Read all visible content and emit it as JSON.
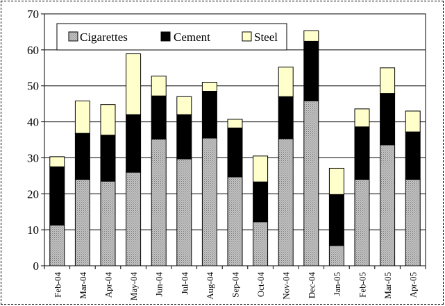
{
  "chart_data": {
    "type": "bar",
    "stacked": true,
    "categories": [
      "Feb-04",
      "Mar-04",
      "Apr-04",
      "May-04",
      "Jun-04",
      "Jul-04",
      "Aug-04",
      "Sep-04",
      "Oct-04",
      "Nov-04",
      "Dec-04",
      "Jan-05",
      "Feb-05",
      "Mar-05",
      "Apr-05"
    ],
    "series": [
      {
        "name": "Cigarettes",
        "color": "#b3b3b3",
        "pattern": "dotted-gray",
        "values": [
          11.3,
          24.0,
          23.5,
          26.0,
          35.2,
          29.7,
          35.5,
          24.7,
          12.2,
          35.3,
          45.8,
          5.6,
          24.0,
          33.6,
          24.0
        ]
      },
      {
        "name": "Cement",
        "color": "#000000",
        "values": [
          16.2,
          12.8,
          12.8,
          16.0,
          12.0,
          12.3,
          13.0,
          13.6,
          11.1,
          11.7,
          16.6,
          14.2,
          14.6,
          14.3,
          13.2
        ]
      },
      {
        "name": "Steel",
        "color": "#ffffcc",
        "values": [
          2.8,
          9.0,
          8.5,
          16.9,
          5.5,
          5.0,
          2.5,
          2.4,
          7.2,
          8.2,
          2.9,
          7.3,
          5.0,
          7.1,
          5.8
        ]
      }
    ],
    "yticks": [
      0,
      10,
      20,
      30,
      40,
      50,
      60,
      70
    ],
    "ylim": [
      0,
      70
    ],
    "grid": true,
    "legend_position": "top-left inside plot"
  }
}
